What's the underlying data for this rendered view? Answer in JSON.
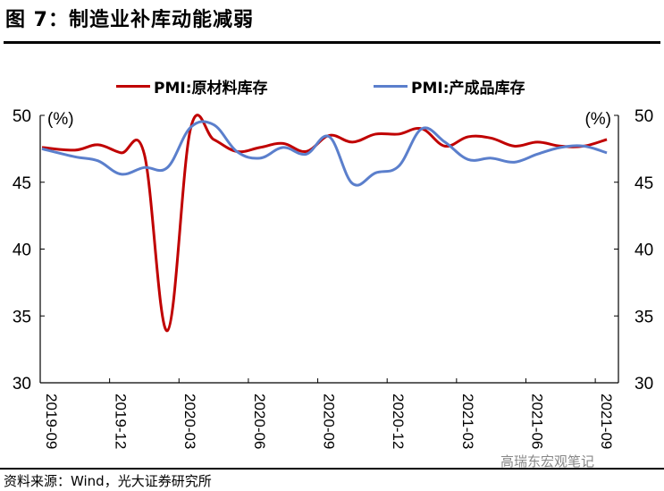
{
  "header": {
    "title": "图 7：制造业补库动能减弱"
  },
  "footer": {
    "source": "资料来源：Wind，光大证券研究所",
    "watermark": "高瑞东宏观笔记"
  },
  "colors": {
    "raw_materials": "#C00000",
    "finished_goods": "#5B7FCC"
  },
  "chart_data": {
    "type": "line",
    "title": "图 7：制造业补库动能减弱",
    "xlabel": "",
    "ylabel": "(%)",
    "ylabel_right": "(%)",
    "ylim": [
      30,
      50
    ],
    "yticks": [
      30,
      35,
      40,
      45,
      50
    ],
    "y_right_ticks": [
      30,
      35,
      40,
      45,
      50
    ],
    "grid": false,
    "legend_position": "top",
    "x_tick_labels": [
      "2019-09",
      "2019-12",
      "2020-03",
      "2020-06",
      "2020-09",
      "2020-12",
      "2021-03",
      "2021-06",
      "2021-09"
    ],
    "x": [
      "2019-09",
      "2019-10",
      "2019-11",
      "2019-12",
      "2020-01",
      "2020-02",
      "2020-03",
      "2020-04",
      "2020-05",
      "2020-06",
      "2020-07",
      "2020-08",
      "2020-09",
      "2020-10",
      "2020-11",
      "2020-12",
      "2021-01",
      "2021-02",
      "2021-03",
      "2021-04",
      "2021-05",
      "2021-06",
      "2021-07",
      "2021-08",
      "2021-09"
    ],
    "series": [
      {
        "name": "PMI:原材料库存",
        "color": "#C00000",
        "values": [
          47.6,
          47.4,
          47.8,
          47.2,
          47.1,
          33.9,
          49.0,
          48.2,
          47.3,
          47.6,
          47.9,
          47.3,
          48.5,
          48.0,
          48.6,
          48.6,
          49.0,
          47.7,
          48.4,
          48.3,
          47.7,
          48.0,
          47.7,
          47.7,
          48.2
        ]
      },
      {
        "name": "PMI:产成品库存",
        "color": "#5B7FCC",
        "values": [
          47.5,
          46.9,
          46.6,
          45.6,
          46.1,
          46.1,
          49.1,
          49.3,
          47.3,
          46.8,
          47.6,
          47.1,
          48.4,
          44.9,
          45.7,
          46.2,
          49.0,
          48.0,
          46.7,
          46.8,
          46.5,
          47.1,
          47.6,
          47.7,
          47.2
        ]
      }
    ]
  }
}
